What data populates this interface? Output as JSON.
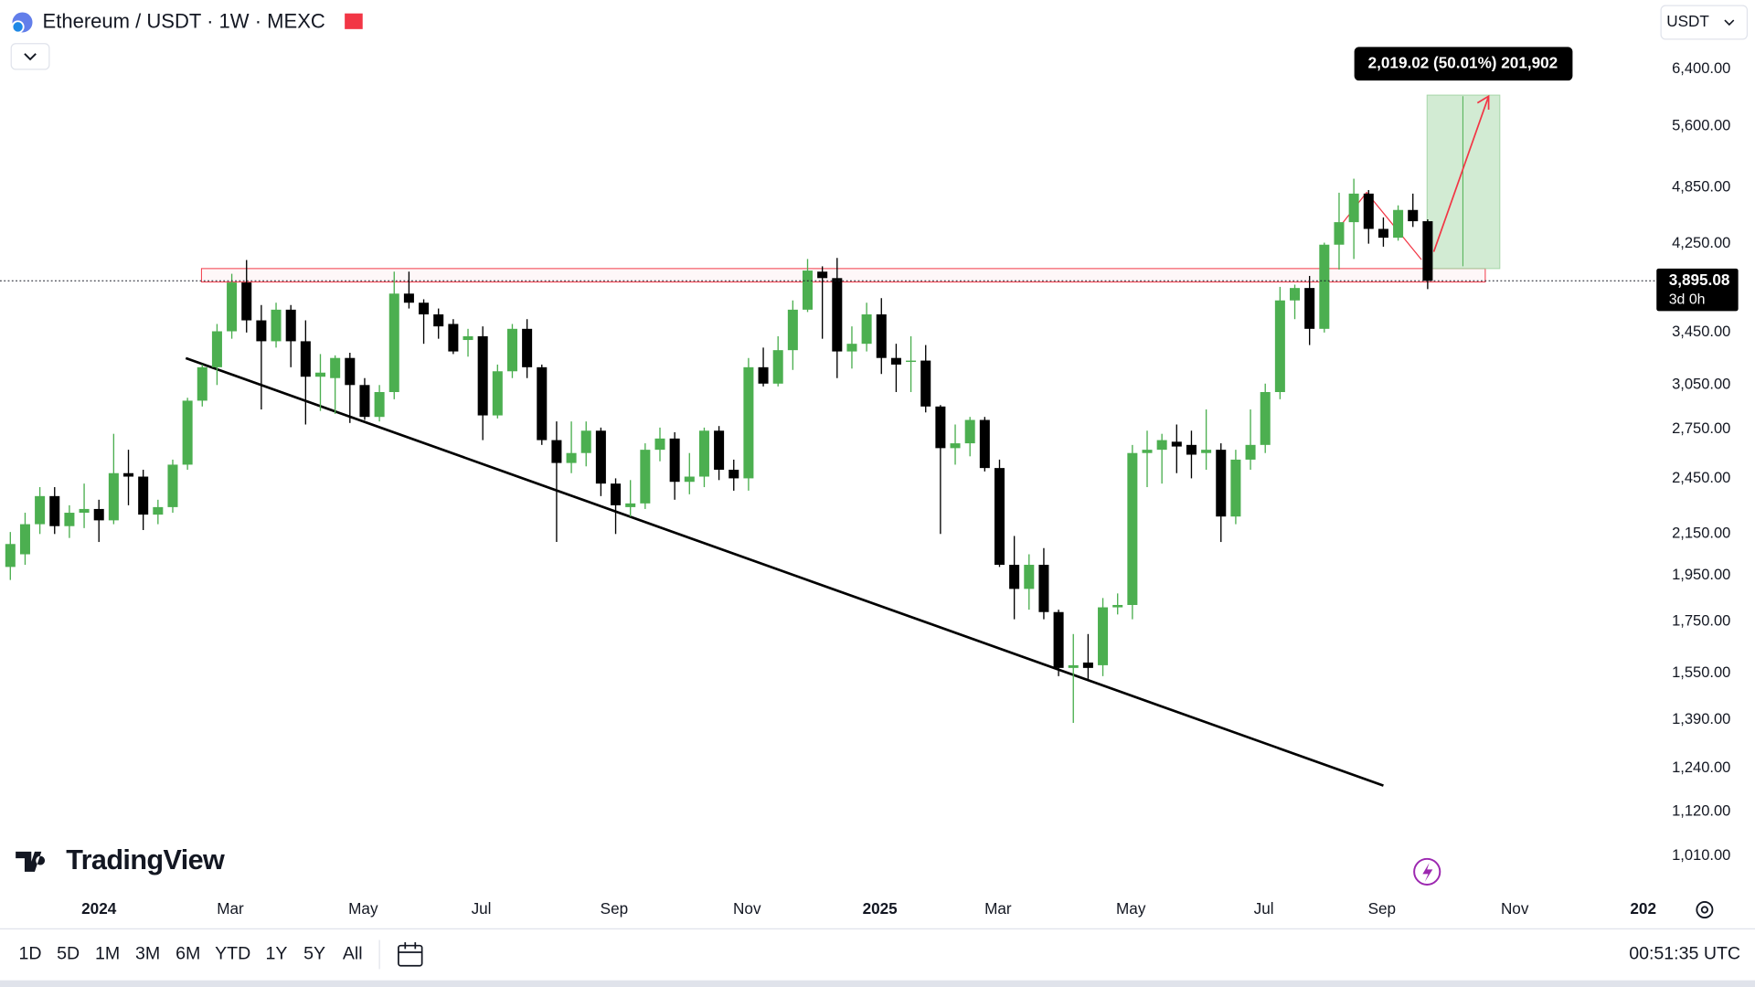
{
  "chart_data": {
    "type": "candlestick",
    "title": "Ethereum / USDT · 1W · MEXC",
    "currency": "USDT",
    "branding": "TradingView",
    "log_scale": true,
    "grid": false,
    "up_color": "#4caf50",
    "down_color": "#000000",
    "open": [
      1990,
      2050,
      2200,
      2350,
      2190,
      2260,
      2280,
      2220,
      2480,
      2460,
      2250,
      2290,
      2530,
      2940,
      3180,
      3460,
      3880,
      3550,
      3380,
      3640,
      3380,
      3110,
      3100,
      3250,
      3050,
      2830,
      3000,
      3780,
      3700,
      3600,
      3520,
      3390,
      3420,
      2840,
      3150,
      3480,
      3180,
      2680,
      2540,
      2600,
      2740,
      2420,
      2290,
      2310,
      2620,
      2690,
      2430,
      2460,
      2740,
      2500,
      2450,
      3180,
      3060,
      3310,
      3640,
      3980,
      3920,
      3300,
      3360,
      3600,
      3250,
      3220,
      3230,
      2900,
      2630,
      2660,
      2810,
      2510,
      2000,
      1890,
      2000,
      1790,
      1570,
      1590,
      1580,
      1810,
      1820,
      2600,
      2620,
      2670,
      2650,
      2600,
      2620,
      2240,
      2560,
      2650,
      3000,
      3720,
      3830,
      3480,
      4240,
      4470,
      4780,
      4400,
      4310,
      4600,
      4480
    ],
    "high": [
      2160,
      2260,
      2400,
      2400,
      2300,
      2420,
      2330,
      2720,
      2620,
      2500,
      2330,
      2560,
      2960,
      3200,
      3520,
      3960,
      4090,
      3680,
      3700,
      3680,
      3550,
      3280,
      3270,
      3290,
      3100,
      3050,
      3980,
      3980,
      3730,
      3650,
      3560,
      3480,
      3500,
      3200,
      3520,
      3560,
      3200,
      2800,
      2800,
      2800,
      2760,
      2450,
      2440,
      2660,
      2760,
      2730,
      2600,
      2760,
      2770,
      2560,
      3250,
      3330,
      3420,
      3720,
      4100,
      4030,
      4110,
      3500,
      3700,
      3740,
      3360,
      3420,
      3350,
      2910,
      2780,
      2830,
      2830,
      2560,
      2140,
      2050,
      2080,
      1800,
      1700,
      1700,
      1850,
      1870,
      2650,
      2740,
      2720,
      2780,
      2740,
      2880,
      2660,
      2620,
      2880,
      3060,
      3840,
      3860,
      3940,
      4260,
      4790,
      4950,
      4820,
      4520,
      4650,
      4780,
      4500
    ],
    "low": [
      1930,
      2000,
      2150,
      2150,
      2130,
      2180,
      2110,
      2200,
      2300,
      2170,
      2200,
      2260,
      2500,
      2900,
      3050,
      3400,
      3450,
      2880,
      3330,
      3180,
      2780,
      2870,
      2850,
      2790,
      2810,
      2800,
      2950,
      3650,
      3360,
      3400,
      3280,
      3260,
      2680,
      2820,
      3100,
      3100,
      2650,
      2110,
      2480,
      2520,
      2350,
      2150,
      2240,
      2280,
      2550,
      2330,
      2360,
      2400,
      2440,
      2380,
      2380,
      3040,
      3040,
      3160,
      3620,
      3400,
      3100,
      3170,
      3300,
      3130,
      3000,
      3000,
      2860,
      2150,
      2530,
      2580,
      2490,
      1990,
      1760,
      1800,
      1760,
      1540,
      1380,
      1530,
      1540,
      1780,
      1760,
      2400,
      2420,
      2480,
      2450,
      2500,
      2110,
      2200,
      2500,
      2600,
      2950,
      3560,
      3350,
      3450,
      4000,
      4100,
      4250,
      4220,
      4280,
      4420,
      3820
    ],
    "close": [
      2100,
      2200,
      2350,
      2190,
      2260,
      2280,
      2220,
      2480,
      2460,
      2250,
      2290,
      2530,
      2940,
      3180,
      3460,
      3880,
      3550,
      3380,
      3640,
      3380,
      3110,
      3140,
      3250,
      3050,
      2830,
      3000,
      3780,
      3700,
      3600,
      3500,
      3300,
      3420,
      2840,
      3150,
      3480,
      3180,
      2680,
      2540,
      2600,
      2740,
      2420,
      2300,
      2310,
      2620,
      2690,
      2430,
      2460,
      2740,
      2500,
      2450,
      3180,
      3060,
      3310,
      3640,
      3990,
      3920,
      3300,
      3360,
      3600,
      3250,
      3200,
      3230,
      2900,
      2630,
      2660,
      2810,
      2510,
      2000,
      1890,
      2000,
      1790,
      1570,
      1580,
      1570,
      1810,
      1820,
      2600,
      2620,
      2680,
      2640,
      2590,
      2620,
      2240,
      2560,
      2650,
      3000,
      3720,
      3830,
      3480,
      4240,
      4470,
      4780,
      4400,
      4310,
      4600,
      4480,
      3895.08
    ],
    "last_price": {
      "value": 3895.08,
      "label": "3,895.08"
    },
    "countdown": "3d 0h",
    "annotation": "2,019.02 (50.01%) 201,902",
    "ylim": [
      933,
      7530
    ],
    "yticks": [
      {
        "value": 1010,
        "label": "1,010.00"
      },
      {
        "value": 1120,
        "label": "1,120.00"
      },
      {
        "value": 1240,
        "label": "1,240.00"
      },
      {
        "value": 1390,
        "label": "1,390.00"
      },
      {
        "value": 1550,
        "label": "1,550.00"
      },
      {
        "value": 1750,
        "label": "1,750.00"
      },
      {
        "value": 1950,
        "label": "1,950.00"
      },
      {
        "value": 2150,
        "label": "2,150.00"
      },
      {
        "value": 2450,
        "label": "2,450.00"
      },
      {
        "value": 2750,
        "label": "2,750.00"
      },
      {
        "value": 3050,
        "label": "3,050.00"
      },
      {
        "value": 3450,
        "label": "3,450.00"
      },
      {
        "value": 4250,
        "label": "4,250.00"
      },
      {
        "value": 4850,
        "label": "4,850.00"
      },
      {
        "value": 5600,
        "label": "5,600.00"
      },
      {
        "value": 6400,
        "label": "6,400.00"
      }
    ],
    "xlim": [
      -0.7,
      111.5
    ],
    "xticks": [
      {
        "value": 6,
        "label": "2024"
      },
      {
        "value": 14.9,
        "label": "Mar"
      },
      {
        "value": 23.9,
        "label": "May"
      },
      {
        "value": 31.9,
        "label": "Jul"
      },
      {
        "value": 40.9,
        "label": "Sep"
      },
      {
        "value": 49.9,
        "label": "Nov"
      },
      {
        "value": 58.9,
        "label": "2025"
      },
      {
        "value": 66.9,
        "label": "Mar"
      },
      {
        "value": 75.9,
        "label": "May"
      },
      {
        "value": 84.9,
        "label": "Jul"
      },
      {
        "value": 92.9,
        "label": "Sep"
      },
      {
        "value": 101.9,
        "label": "Nov"
      },
      {
        "value": 110.6,
        "label": "202"
      }
    ],
    "timeframes": [
      "1D",
      "5D",
      "1M",
      "3M",
      "6M",
      "YTD",
      "1Y",
      "5Y",
      "All"
    ],
    "clock": "00:51:35 UTC"
  }
}
